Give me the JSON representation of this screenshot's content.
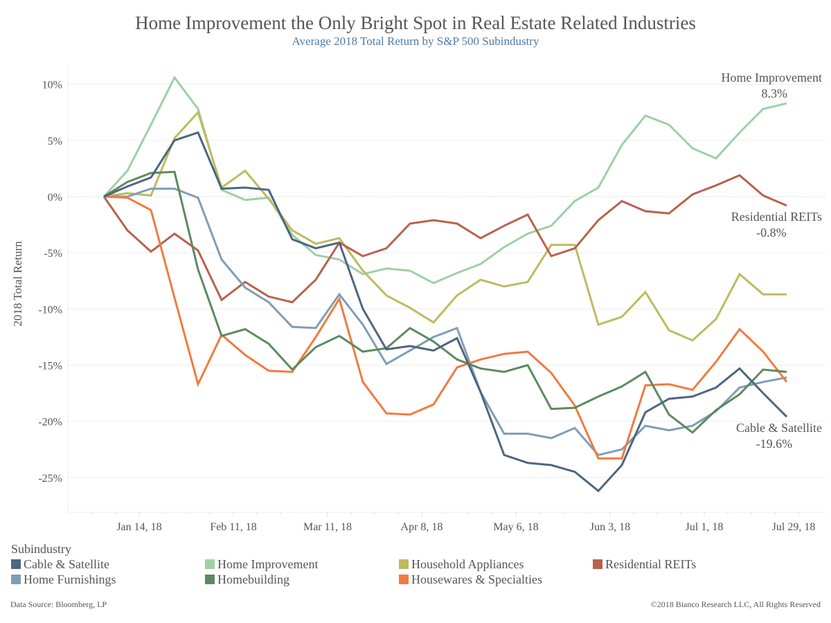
{
  "header": {
    "title": "Home Improvement the Only Bright Spot in Real Estate Related Industries",
    "subtitle": "Average 2018 Total Return by S&P 500 Subindustry"
  },
  "chart_data": {
    "type": "line",
    "title": "Home Improvement the Only Bright Spot in Real Estate Related Industries",
    "subtitle": "Average 2018 Total Return by S&P 500 Subindustry",
    "xlabel": "",
    "ylabel": "2018 Total Return",
    "ylim": [
      -28,
      12.5
    ],
    "grid": true,
    "legend_placement": "bottom",
    "x_tick_labels": [
      "Jan 14, 18",
      "Feb 11, 18",
      "Mar 11, 18",
      "Apr 8, 18",
      "May 6, 18",
      "Jun 3, 18",
      "Jul 1, 18",
      "Jul 29, 18"
    ],
    "x_tick_week_index": [
      2,
      6,
      10,
      14,
      18,
      22,
      26,
      30
    ],
    "y_ticks": [
      10,
      5,
      0,
      -5,
      -10,
      -15,
      -20,
      -25
    ],
    "y_tick_labels": [
      "10%",
      "5%",
      "0%",
      "-5%",
      "-10%",
      "-15%",
      "-20%",
      "-25%"
    ],
    "x_week_count": 30,
    "series": [
      {
        "name": "Home Improvement",
        "color": "#9fcfa6",
        "values": [
          0,
          2.3,
          6.4,
          10.6,
          7.8,
          0.6,
          -0.3,
          -0.1,
          -3.4,
          -5.2,
          -5.6,
          -6.9,
          -6.4,
          -6.6,
          -7.7,
          -6.8,
          -6.0,
          -4.5,
          -3.3,
          -2.6,
          -0.4,
          0.8,
          4.6,
          7.2,
          6.4,
          4.3,
          3.4,
          5.7,
          7.8,
          8.3
        ]
      },
      {
        "name": "Residential REITs",
        "color": "#b9614f",
        "values": [
          0,
          -3.0,
          -4.9,
          -3.3,
          -4.8,
          -9.2,
          -7.6,
          -8.9,
          -9.4,
          -7.4,
          -4.1,
          -5.3,
          -4.6,
          -2.4,
          -2.1,
          -2.4,
          -3.7,
          -2.6,
          -1.6,
          -5.3,
          -4.6,
          -2.1,
          -0.4,
          -1.3,
          -1.5,
          0.2,
          1.0,
          1.9,
          0.1,
          -0.8
        ]
      },
      {
        "name": "Household Appliances",
        "color": "#bdbb5f",
        "values": [
          0,
          0.3,
          0.1,
          5.2,
          7.5,
          0.8,
          2.3,
          -0.2,
          -3.0,
          -4.2,
          -3.7,
          -6.6,
          -8.8,
          -9.9,
          -11.2,
          -8.8,
          -7.4,
          -8.0,
          -7.6,
          -4.3,
          -4.3,
          -11.4,
          -10.7,
          -8.5,
          -11.9,
          -12.8,
          -10.9,
          -6.9,
          -8.7,
          -8.7
        ]
      },
      {
        "name": "Home Furnishings",
        "color": "#7f9db5",
        "values": [
          0,
          0.0,
          0.7,
          0.7,
          -0.1,
          -5.6,
          -8.1,
          -9.4,
          -11.6,
          -11.7,
          -8.7,
          -11.4,
          -14.9,
          -13.7,
          -12.5,
          -11.7,
          -17.4,
          -21.1,
          -21.1,
          -21.5,
          -20.6,
          -23.0,
          -22.5,
          -20.4,
          -20.8,
          -20.4,
          -19.1,
          -17.0,
          -16.5,
          -16.1
        ]
      },
      {
        "name": "Cable & Satellite",
        "color": "#4d6680",
        "values": [
          0,
          0.9,
          1.7,
          5.0,
          5.7,
          0.7,
          0.8,
          0.6,
          -3.8,
          -4.6,
          -4.1,
          -10.0,
          -13.6,
          -13.3,
          -13.7,
          -12.6,
          -17.4,
          -23.0,
          -23.7,
          -23.9,
          -24.5,
          -26.2,
          -23.9,
          -19.2,
          -18.0,
          -17.8,
          -17.0,
          -15.3,
          -17.5,
          -19.6
        ]
      },
      {
        "name": "Homebuilding",
        "color": "#5c8a5e",
        "values": [
          0,
          1.3,
          2.1,
          2.2,
          -6.5,
          -12.4,
          -11.8,
          -13.1,
          -15.4,
          -13.4,
          -12.4,
          -13.8,
          -13.5,
          -11.7,
          -12.9,
          -14.5,
          -15.3,
          -15.6,
          -15.0,
          -18.9,
          -18.8,
          -17.8,
          -16.9,
          -15.6,
          -19.4,
          -21.0,
          -19.0,
          -17.6,
          -15.4,
          -15.6
        ]
      },
      {
        "name": "Housewares & Specialties",
        "color": "#f07b40",
        "values": [
          0,
          -0.1,
          -1.2,
          -9.0,
          -16.7,
          -12.3,
          -14.1,
          -15.5,
          -15.6,
          -12.5,
          -9.1,
          -16.5,
          -19.3,
          -19.4,
          -18.5,
          -15.2,
          -14.5,
          -14.0,
          -13.8,
          -15.7,
          -18.6,
          -23.3,
          -23.3,
          -16.8,
          -16.7,
          -17.2,
          -14.7,
          -11.8,
          -13.8,
          -16.5
        ]
      }
    ],
    "annotations": [
      {
        "series": "Home Improvement",
        "label": "Home Improvement",
        "value_label": "8.3%"
      },
      {
        "series": "Residential REITs",
        "label": "Residential REITs",
        "value_label": "-0.8%"
      },
      {
        "series": "Cable & Satellite",
        "label": "Cable & Satellite",
        "value_label": "-19.6%"
      }
    ]
  },
  "legend": {
    "title": "Subindustry",
    "items": [
      {
        "label": "Cable & Satellite",
        "color": "#4d6680"
      },
      {
        "label": "Home Improvement",
        "color": "#9fcfa6"
      },
      {
        "label": "Household Appliances",
        "color": "#bdbb5f"
      },
      {
        "label": "Residential REITs",
        "color": "#b9614f"
      },
      {
        "label": "Home Furnishings",
        "color": "#7f9db5"
      },
      {
        "label": "Homebuilding",
        "color": "#5c8a5e"
      },
      {
        "label": "Housewares & Specialties",
        "color": "#f07b40"
      }
    ]
  },
  "footer": {
    "source": "Data Source: Bloomberg, LP",
    "copyright": "©2018 Bianco Research LLC, All Rights Reserved"
  }
}
